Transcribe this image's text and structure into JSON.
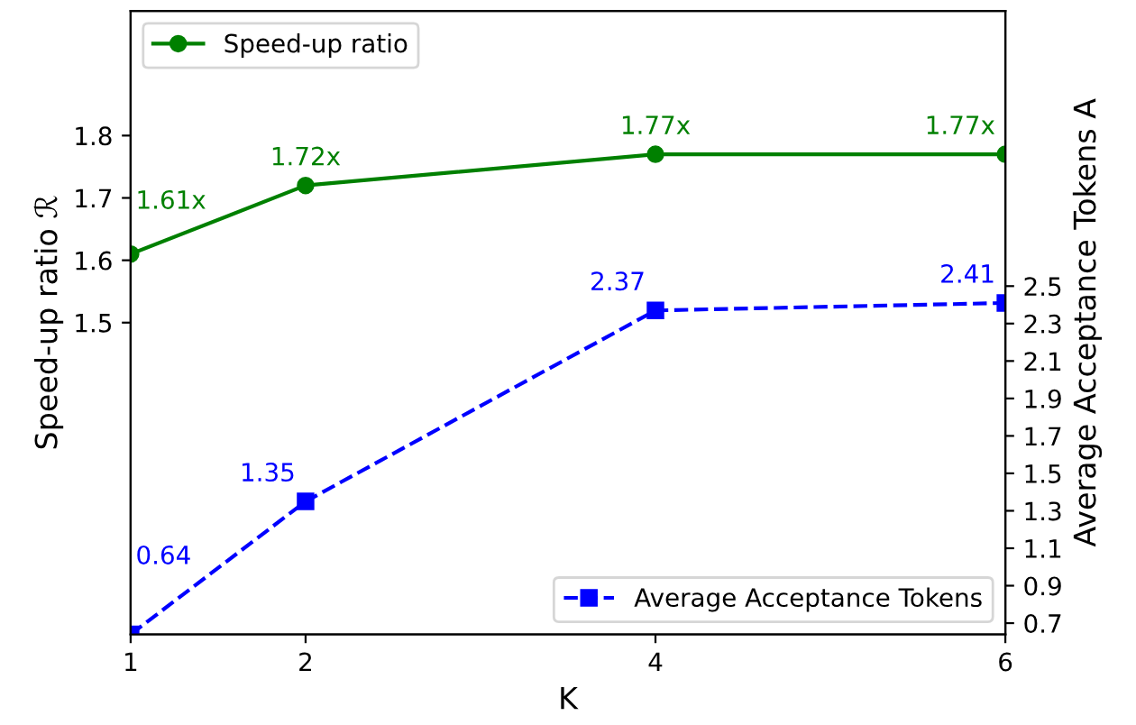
{
  "chart_data": {
    "type": "line",
    "xlabel": "K",
    "ylabel": "Speed-up ratio ℛ",
    "y2label": "Average Acceptance Tokens A",
    "legend": [
      "top left",
      "bottom right"
    ],
    "x": [
      1,
      2,
      4,
      6
    ],
    "xlim": [
      1,
      6
    ],
    "xticks": [
      1,
      2,
      4,
      6
    ],
    "ylim": [
      1.0,
      2.0
    ],
    "yticks": [
      1.5,
      1.6,
      1.7,
      1.8
    ],
    "y2lim": [
      0.64,
      3.97
    ],
    "y2ticks": [
      0.7,
      0.9,
      1.1,
      1.3,
      1.5,
      1.7,
      1.9,
      2.1,
      2.3,
      2.5
    ],
    "grid": false,
    "series": [
      {
        "name": "Speed-up ratio",
        "color": "#008000",
        "values": [
          1.61,
          1.72,
          1.77,
          1.77
        ],
        "value_labels": [
          "1.61x",
          "1.72x",
          "1.77x",
          "1.77x"
        ],
        "marker": "circle",
        "line_style": "solid"
      },
      {
        "name": "Average Acceptance Tokens",
        "color": "#0000ff",
        "values": [
          0.64,
          1.35,
          2.37,
          2.41
        ],
        "axis": "y2",
        "data_labels": true,
        "marker": "square",
        "line_style": "dashed"
      }
    ]
  }
}
